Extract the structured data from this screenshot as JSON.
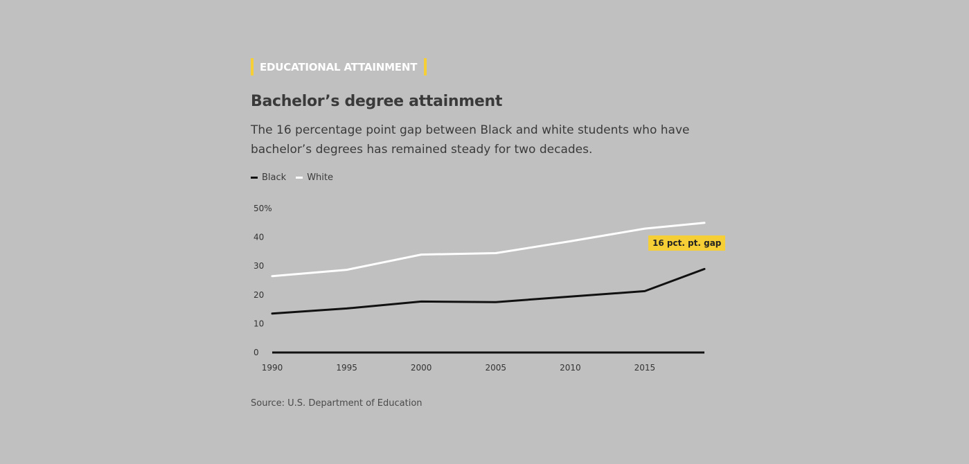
{
  "kicker": "EDUCATIONAL ATTAINMENT",
  "title": "Bachelor’s degree attainment",
  "subtitle": "The 16 percentage point gap between Black and white students who have bachelor’s degrees has remained steady for two decades.",
  "source": "Source: U.S. Department of Education",
  "annotation": "16 pct. pt. gap",
  "colors": {
    "background": "#c0c0c0",
    "accent": "#f6cf36",
    "black_series": "#111111",
    "white_series": "#ffffff"
  },
  "chart_data": {
    "type": "line",
    "title": "Bachelor’s degree attainment",
    "xlabel": "",
    "ylabel": "",
    "xlim": [
      1990,
      2019
    ],
    "ylim": [
      0,
      50
    ],
    "x_ticks": [
      1990,
      1995,
      2000,
      2005,
      2010,
      2015
    ],
    "y_ticks": [
      {
        "value": 0,
        "label": "0"
      },
      {
        "value": 10,
        "label": "10"
      },
      {
        "value": 20,
        "label": "20"
      },
      {
        "value": 30,
        "label": "30"
      },
      {
        "value": 40,
        "label": "40"
      },
      {
        "value": 50,
        "label": "50%"
      }
    ],
    "grid": false,
    "legend": "top-left",
    "series": [
      {
        "name": "Black",
        "color": "#111111",
        "x": [
          1990,
          1995,
          2000,
          2005,
          2010,
          2015,
          2019
        ],
        "y": [
          13.5,
          15.3,
          17.7,
          17.5,
          19.4,
          21.3,
          29.0
        ]
      },
      {
        "name": "White",
        "color": "#ffffff",
        "x": [
          1990,
          1995,
          2000,
          2005,
          2010,
          2015,
          2019
        ],
        "y": [
          26.5,
          28.7,
          34.0,
          34.5,
          38.6,
          43.0,
          45.0
        ]
      }
    ]
  }
}
